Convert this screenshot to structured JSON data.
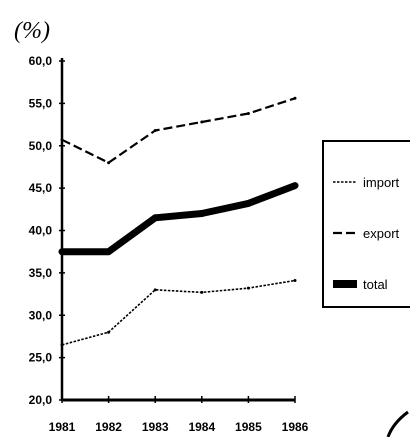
{
  "chart_data": {
    "type": "line",
    "ylabel": "(%)",
    "x": [
      "1981",
      "1982",
      "1983",
      "1984",
      "1985",
      "1986"
    ],
    "ylim": [
      20.0,
      60.0
    ],
    "yticks": [
      "20,0",
      "25,0",
      "30,0",
      "35,0",
      "40,0",
      "45,0",
      "50,0",
      "55,0",
      "60,0"
    ],
    "series": [
      {
        "name": "import",
        "values": [
          26.5,
          28.0,
          33.0,
          32.7,
          33.2,
          34.1
        ],
        "color": "#000000"
      },
      {
        "name": "export",
        "values": [
          50.7,
          48.0,
          51.8,
          52.8,
          53.8,
          55.6
        ],
        "color": "#000000"
      },
      {
        "name": "total",
        "values": [
          37.5,
          37.5,
          41.5,
          42.0,
          43.2,
          45.3
        ],
        "color": "#000000"
      }
    ],
    "legend_position": "right",
    "grid": false
  }
}
